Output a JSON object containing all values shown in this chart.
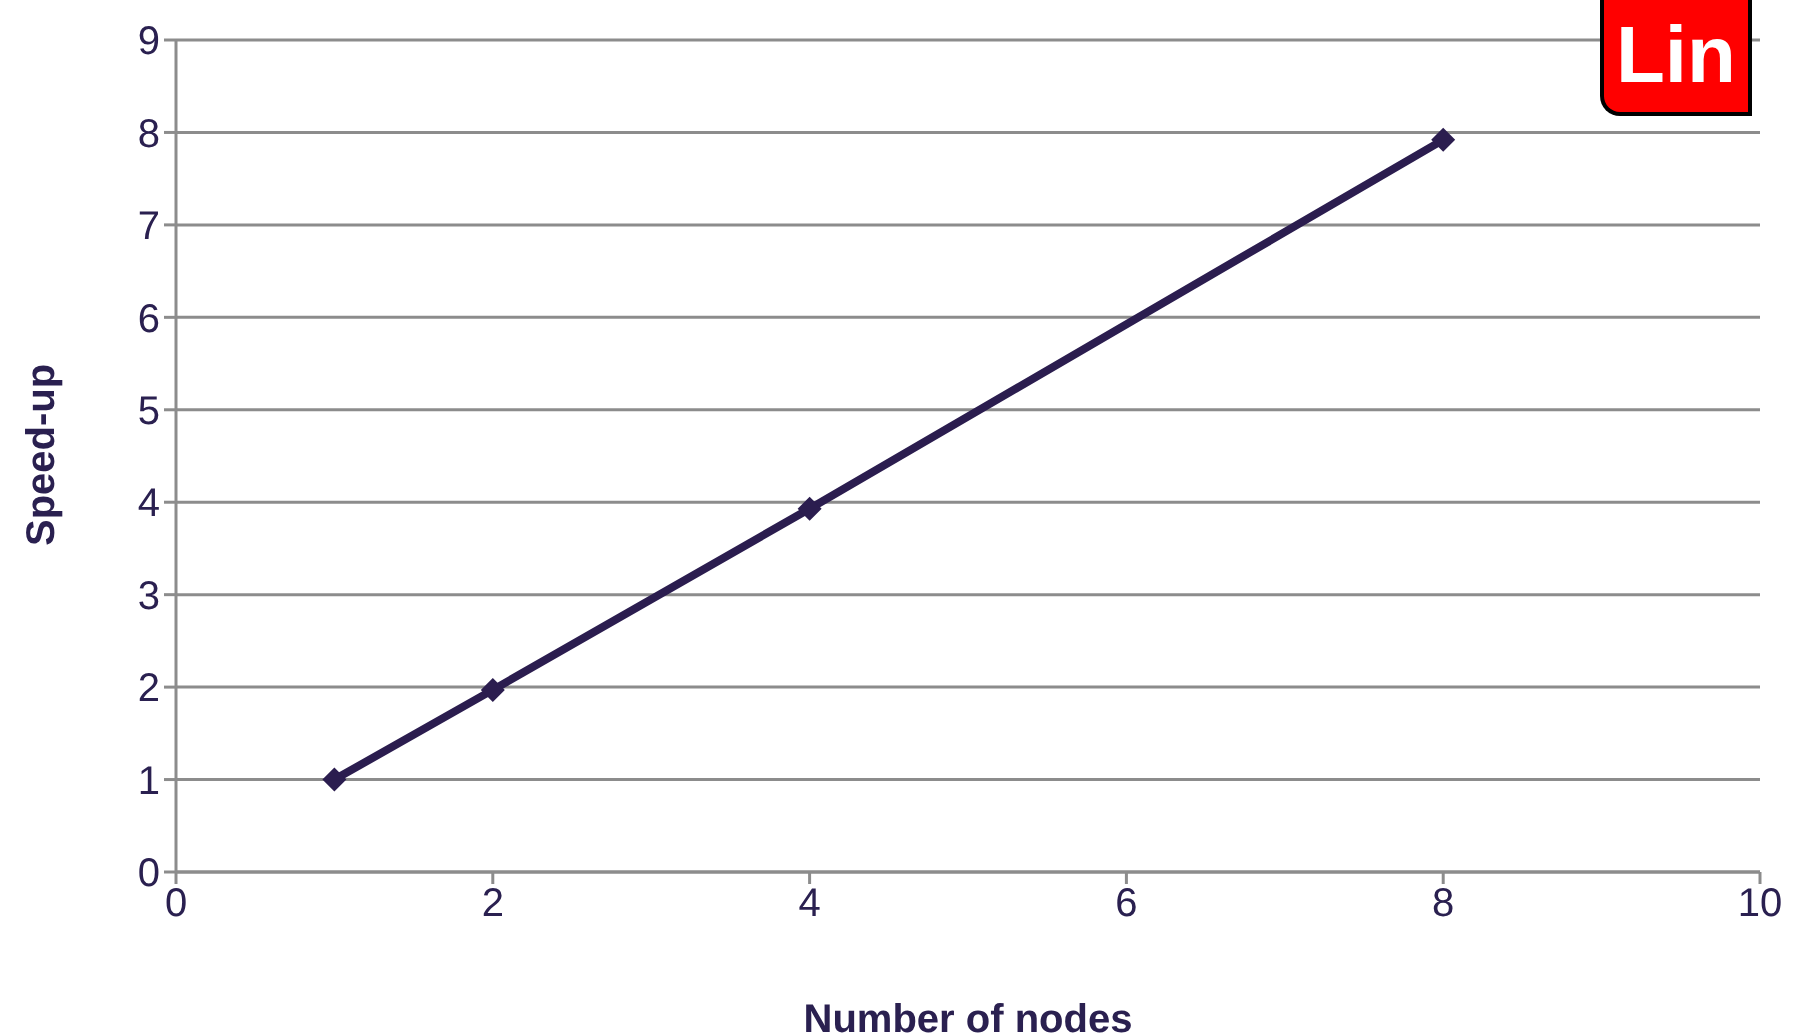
{
  "chart_data": {
    "type": "line",
    "xlabel": "Number of nodes",
    "ylabel": "Speed-up",
    "x": [
      1,
      2,
      4,
      8
    ],
    "series": [
      {
        "color": "#2b1d4f",
        "values": [
          1,
          1.97,
          3.93,
          7.92
        ]
      }
    ],
    "xlim": [
      0,
      10
    ],
    "xticks": [
      0,
      2,
      4,
      6,
      8,
      10
    ],
    "ylim": [
      0,
      9
    ],
    "yticks": [
      0,
      1,
      2,
      3,
      4,
      5,
      6,
      7,
      8,
      9
    ],
    "grid": "y",
    "legend": false,
    "marker": "diamond",
    "line_style": "solid",
    "annotations": [
      "Lin"
    ]
  }
}
